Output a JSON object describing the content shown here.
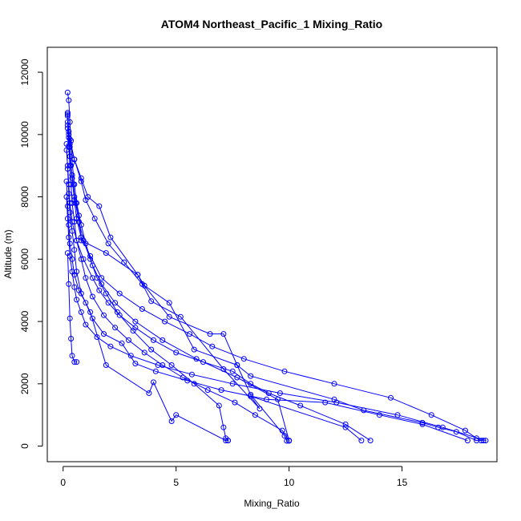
{
  "chart_data": {
    "type": "line",
    "title": "ATOM4 Northeast_Pacific_1 Mixing_Ratio",
    "xlabel": "Mixing_Ratio",
    "ylabel": "Altitude (m)",
    "xlim": [
      -0.7,
      19.2
    ],
    "ylim": [
      -500,
      12800
    ],
    "xticks": [
      0,
      5,
      10,
      15
    ],
    "yticks": [
      0,
      2000,
      4000,
      6000,
      8000,
      10000,
      12000
    ],
    "grid": false,
    "color": "#0000ff",
    "series": [
      {
        "x": [
          0.2,
          0.25,
          0.3,
          0.35,
          0.45,
          0.55,
          0.7,
          0.9,
          1.2,
          1.5,
          1.9,
          2.4,
          3.1,
          3.9,
          4.8,
          5.8,
          6.9,
          7.1,
          7.2,
          7.3
        ],
        "y": [
          10700,
          10100,
          9600,
          9000,
          8400,
          7800,
          7200,
          6600,
          6000,
          5400,
          4900,
          4300,
          3700,
          3100,
          2600,
          2000,
          1300,
          600,
          250,
          180
        ]
      },
      {
        "x": [
          0.2,
          0.3,
          0.5,
          0.8,
          1.1,
          1.6,
          2.1,
          3.3,
          3.6,
          4.7,
          6.5,
          7.1,
          7.7,
          8.3,
          9.8,
          9.9,
          10.0
        ],
        "y": [
          10400,
          9850,
          9200,
          8600,
          8000,
          7700,
          6700,
          5500,
          5150,
          4150,
          3600,
          3600,
          2600,
          1650,
          330,
          170,
          170
        ]
      },
      {
        "x": [
          0.2,
          0.25,
          0.3,
          0.4,
          0.5,
          0.6,
          0.8,
          1.2,
          1.7,
          2.5,
          3.5,
          4.5,
          5.6,
          6.6,
          8.0,
          9.8,
          12.0,
          14.5,
          16.3,
          17.8,
          18.3,
          18.5
        ],
        "y": [
          10650,
          10000,
          9300,
          8600,
          7900,
          7300,
          6700,
          6100,
          5400,
          4900,
          4400,
          4000,
          3600,
          3200,
          2800,
          2400,
          2000,
          1550,
          1000,
          500,
          250,
          180
        ]
      },
      {
        "x": [
          0.2,
          0.3,
          0.5,
          0.8,
          1.0,
          1.4,
          2.0,
          2.7,
          3.5,
          4.7,
          5.8,
          7.7,
          8.3,
          12.0,
          13.3,
          15.9,
          16.6,
          17.4,
          18.3,
          18.6
        ],
        "y": [
          10300,
          9700,
          9200,
          8500,
          7900,
          7300,
          6500,
          5900,
          5200,
          4600,
          3100,
          2600,
          2250,
          1500,
          1150,
          750,
          600,
          460,
          180,
          180
        ]
      },
      {
        "x": [
          0.15,
          0.2,
          0.25,
          0.3,
          0.4,
          0.6,
          0.9,
          1.3,
          1.6,
          2.0,
          2.5,
          3.2,
          4.0,
          5.0,
          6.2,
          7.5,
          8.3,
          9.1,
          10.5,
          12.5,
          13.6
        ],
        "y": [
          9500,
          9000,
          8400,
          7800,
          7200,
          6600,
          6000,
          5400,
          5000,
          4600,
          4200,
          3800,
          3400,
          3000,
          2700,
          2400,
          2000,
          1700,
          1300,
          700,
          180
        ]
      },
      {
        "x": [
          0.2,
          0.25,
          0.3,
          0.4,
          0.5,
          0.7,
          0.8,
          1.9,
          3.3,
          3.9,
          5.2,
          7.1,
          8.7,
          8.3,
          12.5,
          13.2
        ],
        "y": [
          10600,
          9900,
          9300,
          8700,
          8000,
          7400,
          6600,
          6200,
          5500,
          4650,
          4150,
          2470,
          1200,
          1600,
          600,
          180
        ]
      },
      {
        "x": [
          0.2,
          0.25,
          0.3,
          0.35,
          0.4,
          0.5,
          0.6,
          0.8,
          1.0,
          1.3,
          1.8,
          2.3,
          2.9,
          3.6,
          4.4,
          5.3,
          6.4,
          7.6,
          8.5,
          9.7,
          10.0
        ],
        "y": [
          10200,
          9600,
          9000,
          8400,
          7800,
          7200,
          6600,
          6000,
          5400,
          4800,
          4200,
          3800,
          3400,
          3000,
          2600,
          2200,
          1800,
          1400,
          1000,
          500,
          180
        ]
      },
      {
        "x": [
          0.15,
          0.2,
          0.25,
          0.3,
          0.4,
          0.5,
          0.6,
          0.8,
          1.2,
          1.9,
          3.8,
          4.0,
          4.8,
          5.0,
          7.2,
          7.3
        ],
        "y": [
          9700,
          8900,
          8100,
          7500,
          6900,
          6300,
          5600,
          4900,
          4300,
          2600,
          1700,
          2050,
          800,
          1000,
          180,
          180
        ]
      },
      {
        "x": [
          0.15,
          0.2,
          0.25,
          0.3,
          0.4,
          0.5,
          0.7,
          1.0,
          1.3,
          1.8,
          2.6,
          3.2,
          4.1,
          5.5,
          7.0,
          9.0,
          11.6,
          14.0,
          15.9,
          17.9
        ],
        "y": [
          8500,
          7700,
          7100,
          6500,
          6000,
          5500,
          5000,
          4600,
          4100,
          3600,
          3300,
          2650,
          2400,
          2100,
          1800,
          1500,
          1400,
          1000,
          700,
          180
        ]
      },
      {
        "x": [
          0.15,
          0.2,
          0.25,
          0.3,
          0.4,
          0.5,
          0.6,
          0.8,
          1.0,
          1.5,
          2.1,
          3.0,
          4.2,
          5.7,
          7.5,
          9.6,
          12.1,
          14.8,
          16.8,
          18.7
        ],
        "y": [
          8000,
          7300,
          6700,
          6100,
          5600,
          5100,
          4700,
          4300,
          3900,
          3500,
          3200,
          2900,
          2600,
          2300,
          2000,
          1700,
          1400,
          1000,
          600,
          180
        ]
      },
      {
        "x": [
          0.2,
          0.25,
          0.3,
          0.35,
          0.4,
          0.5,
          0.6,
          0.8,
          1.0,
          1.3,
          1.7,
          2.3,
          3.2,
          4.4,
          5.9,
          7.7,
          9.5,
          10.0
        ],
        "y": [
          11350,
          11100,
          10400,
          9800,
          9100,
          8400,
          7800,
          7100,
          6500,
          5800,
          5200,
          4600,
          4000,
          3400,
          2800,
          2200,
          1500,
          180
        ]
      },
      {
        "x": [
          0.2,
          0.25,
          0.3,
          0.35,
          0.4,
          0.5,
          0.6
        ],
        "y": [
          6200,
          5200,
          4100,
          3450,
          2900,
          2700,
          2700
        ]
      }
    ]
  }
}
